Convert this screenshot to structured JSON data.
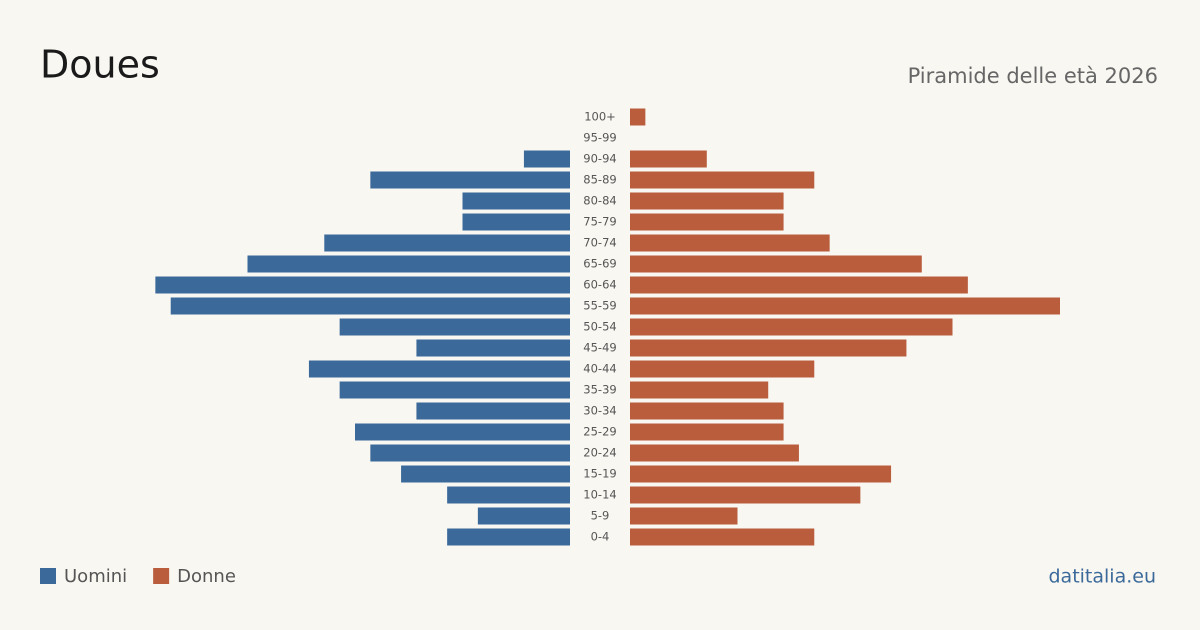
{
  "chart_data": {
    "type": "pyramid",
    "title": "Doues",
    "subtitle": "Piramide delle età 2026",
    "source": "datitalia.eu",
    "categories": [
      "100+",
      "95-99",
      "90-94",
      "85-89",
      "80-84",
      "75-79",
      "70-74",
      "65-69",
      "60-64",
      "55-59",
      "50-54",
      "45-49",
      "40-44",
      "35-39",
      "30-34",
      "25-29",
      "20-24",
      "15-19",
      "10-14",
      "5-9",
      "0-4"
    ],
    "series": [
      {
        "name": "Uomini",
        "color": "#3b6a9a",
        "values": [
          0,
          0,
          3,
          13,
          7,
          7,
          16,
          21,
          27,
          26,
          15,
          10,
          17,
          15,
          10,
          14,
          13,
          11,
          8,
          6,
          8
        ]
      },
      {
        "name": "Donne",
        "color": "#b95d3d",
        "values": [
          1,
          0,
          5,
          12,
          10,
          10,
          13,
          19,
          22,
          28,
          21,
          18,
          12,
          9,
          10,
          10,
          11,
          17,
          15,
          7,
          12
        ]
      }
    ]
  }
}
